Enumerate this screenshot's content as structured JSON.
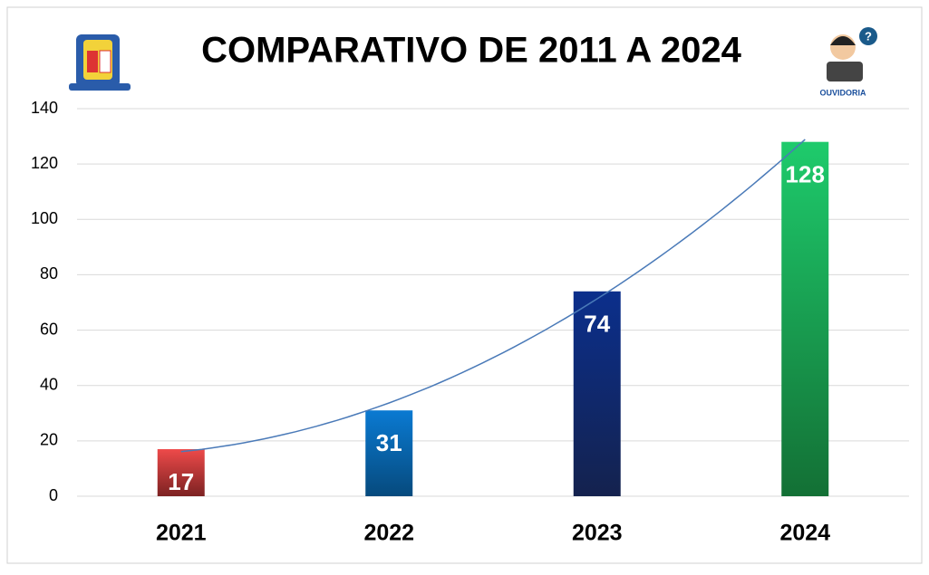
{
  "chart_data": {
    "type": "bar",
    "title": "COMPARATIVO DE 2011 A 2024",
    "categories": [
      "2021",
      "2022",
      "2023",
      "2024"
    ],
    "values": [
      17,
      31,
      74,
      128
    ],
    "colors": [
      "#ee4a4a",
      "#0a7ad2",
      "#0b2f8c",
      "#1ecb6c"
    ],
    "colors_bottom": [
      "#7c2222",
      "#064a7d",
      "#14224e",
      "#137035"
    ],
    "ylim": [
      0,
      140
    ],
    "yticks": [
      0,
      20,
      40,
      60,
      80,
      100,
      120,
      140
    ],
    "grid": true,
    "trendline": "polynomial",
    "trendline_color": "#4a7ab8",
    "logo_label": "OUVIDORIA"
  }
}
